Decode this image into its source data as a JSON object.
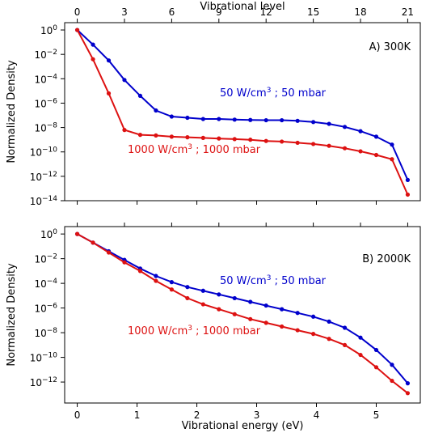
{
  "top_axis": {
    "label": "Vibrational level",
    "ticks": [
      0,
      3,
      6,
      9,
      12,
      15,
      18,
      21
    ],
    "tick_labels": [
      "0",
      "3",
      "6",
      "9",
      "12",
      "15",
      "18",
      "21"
    ]
  },
  "bottom_axis": {
    "label": "Vibrational energy (eV)",
    "ticks": [
      0,
      1,
      2,
      3,
      4,
      5
    ],
    "tick_labels": [
      "0",
      "1",
      "2",
      "3",
      "4",
      "5"
    ]
  },
  "ylabel": "Normalized Density",
  "colors": {
    "blue": "#0000cc",
    "red": "#dd1111"
  },
  "chart_data": [
    {
      "type": "line",
      "panel": "A",
      "title": "A) 300K",
      "xlabel": "Vibrational level",
      "ylabel": "Normalized Density",
      "xlim": [
        -0.8,
        21.8
      ],
      "ylim": [
        -14,
        0.6
      ],
      "yscale": "log",
      "yticks": [
        0,
        -2,
        -4,
        -6,
        -8,
        -10,
        -12,
        -14
      ],
      "x": [
        0,
        1,
        2,
        3,
        4,
        5,
        6,
        7,
        8,
        9,
        10,
        11,
        12,
        13,
        14,
        15,
        16,
        17,
        18,
        19,
        20,
        21
      ],
      "series": [
        {
          "name": "50 W/cm3 ; 50 mbar",
          "color": "#0000cc",
          "log10_values": [
            0,
            -1.2,
            -2.5,
            -4.1,
            -5.4,
            -6.6,
            -7.1,
            -7.2,
            -7.3,
            -7.3,
            -7.35,
            -7.38,
            -7.4,
            -7.4,
            -7.45,
            -7.55,
            -7.7,
            -7.95,
            -8.3,
            -8.75,
            -9.4,
            -12.3
          ]
        },
        {
          "name": "1000 W/cm3 ; 1000 mbar",
          "color": "#dd1111",
          "log10_values": [
            0,
            -2.4,
            -5.2,
            -8.2,
            -8.6,
            -8.65,
            -8.75,
            -8.8,
            -8.85,
            -8.9,
            -8.95,
            -9.0,
            -9.1,
            -9.15,
            -9.25,
            -9.35,
            -9.5,
            -9.7,
            -9.95,
            -10.25,
            -10.6,
            -13.5
          ]
        }
      ],
      "annotations": [
        {
          "text": "50 W/cm3 ; 50 mbar",
          "color": "#0000cc"
        },
        {
          "text": "1000 W/cm3 ; 1000 mbar",
          "color": "#dd1111"
        }
      ]
    },
    {
      "type": "line",
      "panel": "B",
      "title": "B) 2000K",
      "xlabel": "Vibrational energy (eV)",
      "ylabel": "Normalized Density",
      "xlim": [
        -0.8,
        21.8
      ],
      "ylim": [
        -13.7,
        0.6
      ],
      "yscale": "log",
      "yticks": [
        0,
        -2,
        -4,
        -6,
        -8,
        -10,
        -12
      ],
      "x": [
        0,
        1,
        2,
        3,
        4,
        5,
        6,
        7,
        8,
        9,
        10,
        11,
        12,
        13,
        14,
        15,
        16,
        17,
        18,
        19,
        20,
        21
      ],
      "series": [
        {
          "name": "50 W/cm3 ; 50 mbar",
          "color": "#0000cc",
          "log10_values": [
            0,
            -0.7,
            -1.4,
            -2.1,
            -2.8,
            -3.4,
            -3.9,
            -4.3,
            -4.6,
            -4.9,
            -5.2,
            -5.5,
            -5.8,
            -6.1,
            -6.4,
            -6.7,
            -7.1,
            -7.6,
            -8.4,
            -9.4,
            -10.6,
            -12.1
          ]
        },
        {
          "name": "1000 W/cm3 ; 1000 mbar",
          "color": "#dd1111",
          "log10_values": [
            0,
            -0.7,
            -1.5,
            -2.3,
            -3.0,
            -3.8,
            -4.5,
            -5.2,
            -5.7,
            -6.1,
            -6.5,
            -6.9,
            -7.2,
            -7.5,
            -7.8,
            -8.1,
            -8.5,
            -9.0,
            -9.8,
            -10.8,
            -11.9,
            -12.9
          ]
        }
      ],
      "annotations": [
        {
          "text": "50 W/cm3 ; 50 mbar",
          "color": "#0000cc"
        },
        {
          "text": "1000 W/cm3 ; 1000 mbar",
          "color": "#dd1111"
        }
      ]
    }
  ]
}
